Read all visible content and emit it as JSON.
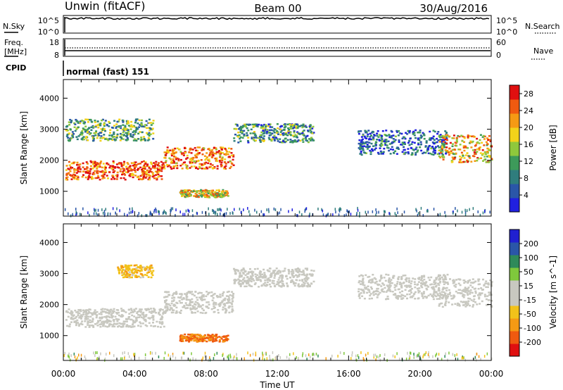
{
  "header": {
    "station": "Unwin (fitACF)",
    "beam": "Beam 00",
    "date": "30/Aug/2016"
  },
  "top_panels": {
    "nsky": {
      "label": "N.Sky",
      "ticks": [
        "10^5",
        "10^0"
      ]
    },
    "nsearch": {
      "label": "N.Search",
      "ticks": [
        "10^5",
        "10^0"
      ]
    },
    "freq": {
      "label_line1": "Freq.",
      "label_line2": "[MHz]",
      "ticks": [
        "18",
        "8"
      ]
    },
    "nave": {
      "label": "Nave",
      "ticks": [
        "60",
        "0"
      ]
    },
    "cpid": {
      "label": "CPID",
      "value": "normal (fast) 151"
    }
  },
  "x_axis": {
    "title": "Time UT",
    "ticks": [
      "00:00",
      "04:00",
      "08:00",
      "12:00",
      "16:00",
      "20:00",
      "00:00"
    ]
  },
  "colors": {
    "power": [
      "#2020e0",
      "#2a56a8",
      "#2f7d7d",
      "#3d9a5a",
      "#8fc83c",
      "#f2d21a",
      "#f59a14",
      "#ef5a10",
      "#e01010"
    ],
    "velocity": [
      "#e01010",
      "#ef5a10",
      "#f59a14",
      "#f2c21a",
      "#c8c8c0",
      "#c8c8c0",
      "#7fc83c",
      "#2f8a5a",
      "#2a56a8",
      "#2020d0"
    ]
  },
  "chart_data": [
    {
      "type": "heatmap",
      "title": "",
      "ylabel": "Slant Range [km]",
      "xlabel": "",
      "x_ticks": [
        "00:00",
        "04:00",
        "08:00",
        "12:00",
        "16:00",
        "20:00",
        "00:00"
      ],
      "y_ticks": [
        1000,
        2000,
        3000,
        4000
      ],
      "ylim": [
        200,
        4600
      ],
      "xlim_hours": [
        0,
        24
      ],
      "colorbar": {
        "label": "Power [dB]",
        "ticks": [
          4,
          8,
          12,
          16,
          20,
          24,
          28
        ],
        "range": [
          0,
          30
        ]
      },
      "echo_regions": [
        {
          "t0": 0.1,
          "t1": 5.6,
          "r_center": 1700,
          "r_half": 300,
          "level": 26
        },
        {
          "t0": 5.6,
          "t1": 9.5,
          "r_center": 2100,
          "r_half": 350,
          "level": 24
        },
        {
          "t0": 9.5,
          "t1": 14.0,
          "r_center": 2900,
          "r_half": 300,
          "level": 10
        },
        {
          "t0": 6.5,
          "t1": 9.2,
          "r_center": 950,
          "r_half": 120,
          "level": 18
        },
        {
          "t0": 0.1,
          "t1": 5.0,
          "r_center": 3000,
          "r_half": 350,
          "level": 12
        },
        {
          "t0": 16.5,
          "t1": 21.5,
          "r_center": 2600,
          "r_half": 400,
          "level": 6
        },
        {
          "t0": 21.0,
          "t1": 24.0,
          "r_center": 2400,
          "r_half": 450,
          "level": 20
        }
      ]
    },
    {
      "type": "heatmap",
      "title": "",
      "ylabel": "Slant Range [km]",
      "xlabel": "Time UT",
      "x_ticks": [
        "00:00",
        "04:00",
        "08:00",
        "12:00",
        "16:00",
        "20:00",
        "00:00"
      ],
      "y_ticks": [
        1000,
        2000,
        3000,
        4000
      ],
      "ylim": [
        200,
        4600
      ],
      "xlim_hours": [
        0,
        24
      ],
      "colorbar": {
        "label": "Velocity [m s^-1]",
        "ticks": [
          -200,
          -100,
          -50,
          -15,
          15,
          50,
          100,
          200
        ],
        "range": [
          -250,
          250
        ]
      },
      "echo_regions": [
        {
          "t0": 0.1,
          "t1": 5.6,
          "r_center": 1600,
          "r_half": 300,
          "level": 0
        },
        {
          "t0": 5.6,
          "t1": 9.5,
          "r_center": 2100,
          "r_half": 350,
          "level": -10
        },
        {
          "t0": 9.5,
          "t1": 14.0,
          "r_center": 2900,
          "r_half": 300,
          "level": 0
        },
        {
          "t0": 6.5,
          "t1": 9.2,
          "r_center": 950,
          "r_half": 120,
          "level": -160
        },
        {
          "t0": 3.0,
          "t1": 5.0,
          "r_center": 3100,
          "r_half": 200,
          "level": -80
        },
        {
          "t0": 16.5,
          "t1": 21.5,
          "r_center": 2600,
          "r_half": 400,
          "level": 5
        },
        {
          "t0": 21.0,
          "t1": 24.0,
          "r_center": 2400,
          "r_half": 450,
          "level": 5
        }
      ]
    }
  ]
}
